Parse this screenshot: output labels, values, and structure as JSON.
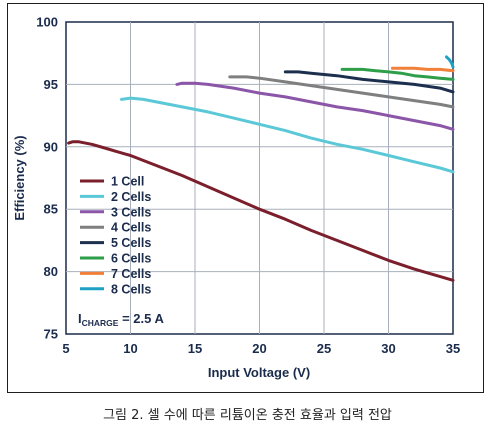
{
  "caption": "그림 2. 셀 수에 따른 리튬이온 충전 효율과 입력 전압",
  "chart_data": {
    "type": "line",
    "title": "",
    "xlabel": "Input Voltage (V)",
    "ylabel": "Efficiency (%)",
    "xlim": [
      5,
      35
    ],
    "ylim": [
      75,
      100
    ],
    "xticks": [
      5,
      10,
      15,
      20,
      25,
      30,
      35
    ],
    "yticks": [
      75,
      80,
      85,
      90,
      95,
      100
    ],
    "grid": true,
    "legend_position": "left",
    "annotation": {
      "main": "I",
      "sub": "CHARGE",
      "rest": " = 2.5 A"
    },
    "series": [
      {
        "name": "1 Cell",
        "color": "#7a1f2b",
        "x": [
          5.2,
          5.5,
          6,
          7,
          8,
          9,
          10,
          12,
          14,
          16,
          18,
          20,
          22,
          24,
          26,
          28,
          30,
          32,
          34,
          35
        ],
        "y": [
          90.3,
          90.4,
          90.4,
          90.2,
          89.9,
          89.6,
          89.3,
          88.5,
          87.7,
          86.8,
          85.9,
          85.0,
          84.2,
          83.3,
          82.5,
          81.7,
          80.9,
          80.2,
          79.6,
          79.3
        ]
      },
      {
        "name": "2 Cells",
        "color": "#5bc8d8",
        "x": [
          9.3,
          10,
          11,
          12,
          14,
          16,
          18,
          20,
          22,
          24,
          26,
          28,
          30,
          32,
          34,
          35
        ],
        "y": [
          93.8,
          93.9,
          93.8,
          93.6,
          93.2,
          92.8,
          92.3,
          91.8,
          91.3,
          90.7,
          90.2,
          89.8,
          89.3,
          88.8,
          88.3,
          88.0
        ]
      },
      {
        "name": "3 Cells",
        "color": "#8b55a8",
        "x": [
          13.6,
          14,
          15,
          16,
          18,
          20,
          22,
          24,
          26,
          28,
          30,
          32,
          34,
          35
        ],
        "y": [
          95.0,
          95.1,
          95.1,
          95.0,
          94.7,
          94.3,
          94.0,
          93.6,
          93.2,
          92.9,
          92.5,
          92.1,
          91.7,
          91.4
        ]
      },
      {
        "name": "4 Cells",
        "color": "#7f7f7f",
        "x": [
          17.7,
          18,
          19,
          20,
          22,
          24,
          26,
          28,
          30,
          32,
          34,
          35
        ],
        "y": [
          95.6,
          95.6,
          95.6,
          95.5,
          95.2,
          94.9,
          94.6,
          94.3,
          94.0,
          93.7,
          93.4,
          93.2
        ]
      },
      {
        "name": "5 Cells",
        "color": "#1c2f4e",
        "x": [
          22,
          23,
          24,
          26,
          28,
          30,
          32,
          34,
          35
        ],
        "y": [
          96.0,
          96.0,
          95.9,
          95.7,
          95.4,
          95.2,
          95.0,
          94.7,
          94.4
        ]
      },
      {
        "name": "6 Cells",
        "color": "#2e9e48",
        "x": [
          26.4,
          27,
          28,
          29,
          30,
          31,
          32,
          33,
          34,
          35
        ],
        "y": [
          96.2,
          96.2,
          96.2,
          96.1,
          96.0,
          95.9,
          95.7,
          95.6,
          95.5,
          95.4
        ]
      },
      {
        "name": "7 Cells",
        "color": "#f0803a",
        "x": [
          30.3,
          31,
          32,
          33,
          34,
          35
        ],
        "y": [
          96.3,
          96.3,
          96.3,
          96.2,
          96.2,
          96.1
        ]
      },
      {
        "name": "8 Cells",
        "color": "#1fa1c6",
        "x": [
          34.5,
          34.7,
          34.9,
          35.0
        ],
        "y": [
          97.2,
          97.0,
          96.7,
          96.4
        ]
      }
    ]
  }
}
